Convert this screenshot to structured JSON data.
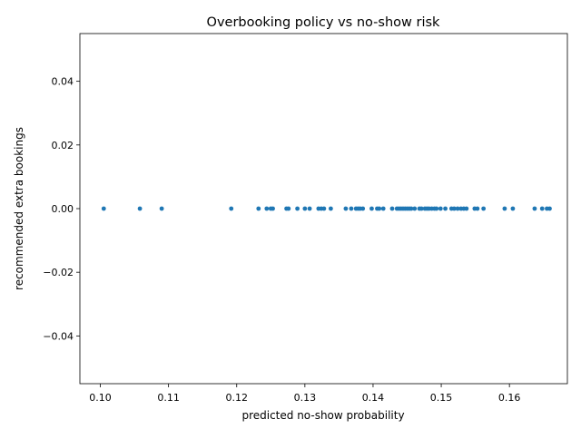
{
  "chart_data": {
    "type": "scatter",
    "title": "Overbooking policy vs no-show risk",
    "xlabel": "predicted no-show probability",
    "ylabel": "recommended extra bookings",
    "xlim": [
      0.097,
      0.1685
    ],
    "ylim": [
      -0.055,
      0.055
    ],
    "xticks": [
      0.1,
      0.11,
      0.12,
      0.13,
      0.14,
      0.15,
      0.16
    ],
    "xtick_labels": [
      "0.10",
      "0.11",
      "0.12",
      "0.13",
      "0.14",
      "0.15",
      "0.16"
    ],
    "yticks": [
      -0.04,
      -0.02,
      0.0,
      0.02,
      0.04
    ],
    "ytick_labels": [
      "−0.04",
      "−0.02",
      "0.00",
      "0.02",
      "0.04"
    ],
    "grid": false,
    "legend": "none",
    "marker_color": "#1f77b4",
    "series": [
      {
        "x": [
          0.1005,
          0.1058,
          0.109,
          0.1192,
          0.1232,
          0.1244,
          0.125,
          0.1253,
          0.1273,
          0.1276,
          0.1289,
          0.13,
          0.1307,
          0.132,
          0.1324,
          0.1328,
          0.1338,
          0.136,
          0.1368,
          0.1375,
          0.1378,
          0.1381,
          0.1385,
          0.1398,
          0.1406,
          0.1409,
          0.1415,
          0.1428,
          0.1435,
          0.1438,
          0.1441,
          0.1444,
          0.1447,
          0.145,
          0.1453,
          0.1456,
          0.1461,
          0.1468,
          0.1471,
          0.1476,
          0.1479,
          0.1482,
          0.1486,
          0.149,
          0.1493,
          0.1499,
          0.1506,
          0.1515,
          0.1519,
          0.1524,
          0.1529,
          0.1533,
          0.1537,
          0.1549,
          0.1553,
          0.1562,
          0.1593,
          0.1605,
          0.1637,
          0.1648,
          0.1655,
          0.1659
        ],
        "y": [
          0,
          0,
          0,
          0,
          0,
          0,
          0,
          0,
          0,
          0,
          0,
          0,
          0,
          0,
          0,
          0,
          0,
          0,
          0,
          0,
          0,
          0,
          0,
          0,
          0,
          0,
          0,
          0,
          0,
          0,
          0,
          0,
          0,
          0,
          0,
          0,
          0,
          0,
          0,
          0,
          0,
          0,
          0,
          0,
          0,
          0,
          0,
          0,
          0,
          0,
          0,
          0,
          0,
          0,
          0,
          0,
          0,
          0,
          0,
          0,
          0,
          0
        ]
      }
    ]
  }
}
